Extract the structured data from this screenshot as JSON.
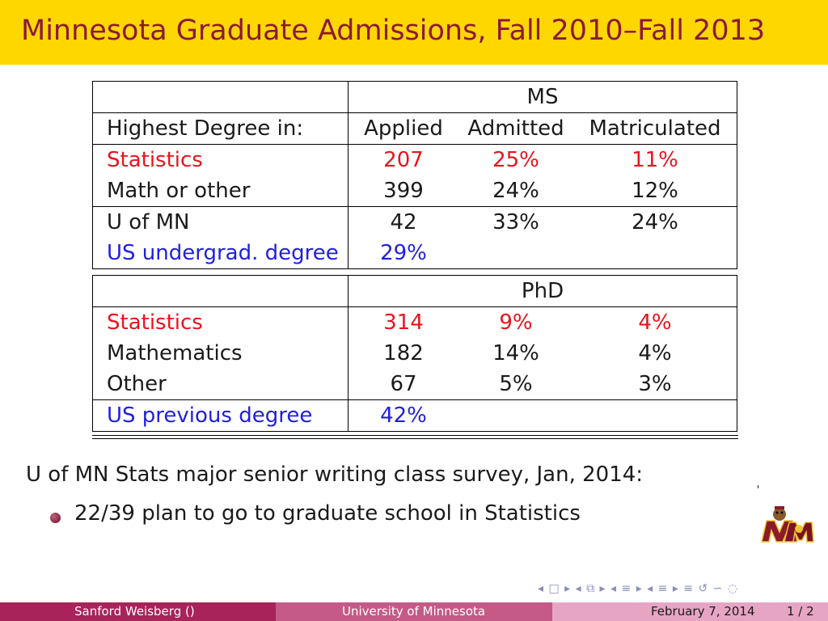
{
  "title": "Minnesota Graduate Admissions, Fall 2010–Fall 2013",
  "ms": {
    "header": "MS",
    "columns": [
      "Highest Degree in:",
      "Applied",
      "Admitted",
      "Matriculated"
    ],
    "rows": [
      [
        "Statistics",
        "207",
        "25%",
        "11%"
      ],
      [
        "Math or other",
        "399",
        "24%",
        "12%"
      ],
      [
        "U of MN",
        "42",
        "33%",
        "24%"
      ],
      [
        "US undergrad. degree",
        "29%"
      ]
    ]
  },
  "phd": {
    "header": "PhD",
    "rows": [
      [
        "Statistics",
        "314",
        "9%",
        "4%"
      ],
      [
        "Mathematics",
        "182",
        "14%",
        "4%"
      ],
      [
        "Other",
        "67",
        "5%",
        "3%"
      ],
      [
        "US previous degree",
        "42%"
      ]
    ]
  },
  "survey_heading": "U of MN Stats major senior writing class survey, Jan, 2014:",
  "bullet": "22/39 plan to go to graduate school in Statistics",
  "nav_symbols": "◂ □ ▸ ◂ ⧉ ▸ ◂ ≡ ▸ ◂ ≡ ▸   ≡   ↺ ∽ ◌",
  "footer": {
    "author": "Sanford Weisberg ()",
    "institution": "University of Minnesota",
    "date": "February 7, 2014",
    "page": "1 / 2"
  },
  "colors": {
    "title_bar": "#ffd700",
    "title_text": "#8b1a3a",
    "highlight_red": "#e8141e",
    "highlight_blue": "#1f1fe0",
    "footer_left": "#a8235a",
    "footer_mid": "#c45a85",
    "footer_right": "#e6a6c3"
  }
}
